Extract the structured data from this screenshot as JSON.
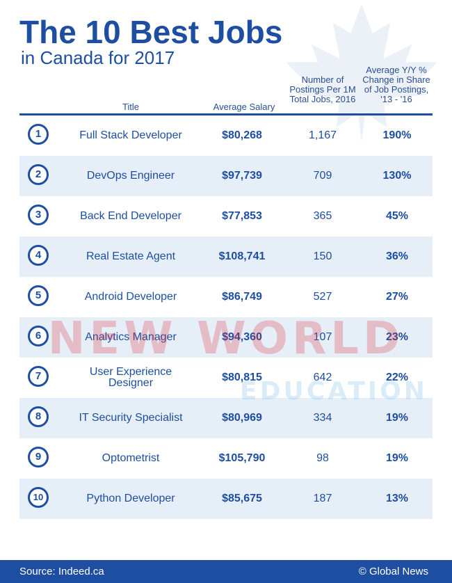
{
  "title": "The 10 Best Jobs",
  "subtitle": "in Canada for 2017",
  "headers": {
    "title": "Title",
    "salary": "Average Salary",
    "postings": "Number of Postings Per 1M Total Jobs, 2016",
    "change": "Average Y/Y % Change in Share of Job Postings, '13 - '16"
  },
  "rows": [
    {
      "rank": "1",
      "title": "Full Stack Developer",
      "salary": "$80,268",
      "postings": "1,167",
      "change": "190%"
    },
    {
      "rank": "2",
      "title": "DevOps Engineer",
      "salary": "$97,739",
      "postings": "709",
      "change": "130%"
    },
    {
      "rank": "3",
      "title": "Back End Developer",
      "salary": "$77,853",
      "postings": "365",
      "change": "45%"
    },
    {
      "rank": "4",
      "title": "Real Estate Agent",
      "salary": "$108,741",
      "postings": "150",
      "change": "36%"
    },
    {
      "rank": "5",
      "title": "Android Developer",
      "salary": "$86,749",
      "postings": "527",
      "change": "27%"
    },
    {
      "rank": "6",
      "title": "Analytics Manager",
      "salary": "$94,360",
      "postings": "107",
      "change": "23%"
    },
    {
      "rank": "7",
      "title": "User Experience Designer",
      "salary": "$80,815",
      "postings": "642",
      "change": "22%"
    },
    {
      "rank": "8",
      "title": "IT Security Specialist",
      "salary": "$80,969",
      "postings": "334",
      "change": "19%"
    },
    {
      "rank": "9",
      "title": "Optometrist",
      "salary": "$105,790",
      "postings": "98",
      "change": "19%"
    },
    {
      "rank": "10",
      "title": "Python Developer",
      "salary": "$85,675",
      "postings": "187",
      "change": "13%"
    }
  ],
  "watermark": {
    "line1": "NEW WORLD",
    "line2": "EDUCATION"
  },
  "footer": {
    "source": "Source: Indeed.ca",
    "brand": "© Global News"
  },
  "colors": {
    "primary": "#1d4ea2",
    "row_alt": "#e6eef8",
    "watermark_red": "#e0282e",
    "watermark_blue": "#6fb4e6"
  },
  "icons": {
    "background": "maple-leaf-icon",
    "watermark": "graduation-cap-icon"
  }
}
